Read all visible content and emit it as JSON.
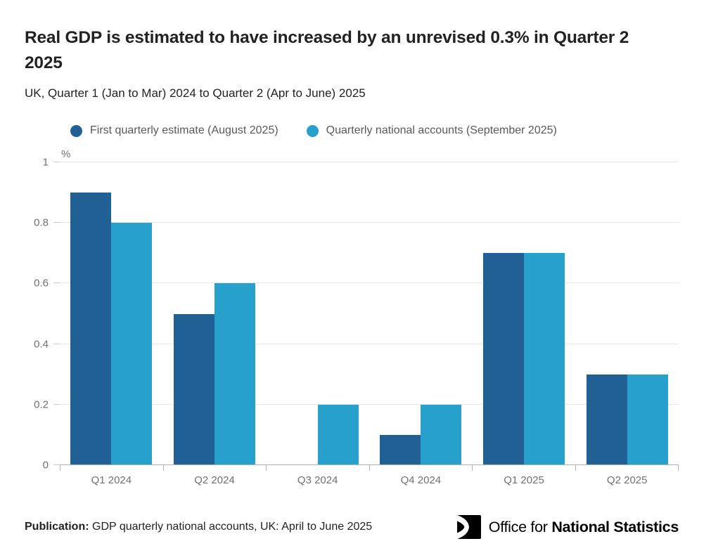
{
  "header": {
    "title": "Real GDP is estimated to have increased by an unrevised 0.3% in Quarter 2 2025",
    "subtitle": "UK, Quarter 1 (Jan to Mar) 2024 to Quarter 2 (Apr to June) 2025"
  },
  "chart_data": {
    "type": "bar",
    "title": "Real GDP is estimated to have increased by an unrevised 0.3% in Quarter 2 2025",
    "subtitle": "UK, Quarter 1 (Jan to Mar) 2024 to Quarter 2 (Apr to June) 2025",
    "unit_label": "%",
    "xlabel": "",
    "ylabel": "%",
    "ylim": [
      0,
      1
    ],
    "grid": "horizontal",
    "legend_position": "top",
    "categories": [
      "Q1 2024",
      "Q2 2024",
      "Q3 2024",
      "Q4 2024",
      "Q1 2025",
      "Q2 2025"
    ],
    "series": [
      {
        "name": "First quarterly estimate (August 2025)",
        "color": "#206095",
        "values": [
          0.9,
          0.5,
          0,
          0.1,
          0.7,
          0.3
        ]
      },
      {
        "name": "Quarterly national accounts (September 2025)",
        "color": "#27a0cc",
        "values": [
          0.8,
          0.6,
          0.2,
          0.2,
          0.7,
          0.3
        ]
      }
    ],
    "yticks": [
      {
        "value": 0,
        "label": "0"
      },
      {
        "value": 0.2,
        "label": "0.2"
      },
      {
        "value": 0.4,
        "label": "0.4"
      },
      {
        "value": 0.6,
        "label": "0.6"
      },
      {
        "value": 0.8,
        "label": "0.8"
      },
      {
        "value": 1,
        "label": "1"
      }
    ]
  },
  "footer": {
    "publication_label": "Publication:",
    "publication_text": " GDP quarterly national accounts, UK: April to June 2025",
    "logo_text_regular": "Office for ",
    "logo_text_bold": "National Statistics"
  },
  "colors": {
    "series_dark_blue": "#206095",
    "series_light_blue": "#27a0cc",
    "gridline": "#e7e7e7",
    "axis_line": "#b3b3b3",
    "axis_text": "#707070",
    "legend_text": "#595959",
    "heading_text": "#222222"
  }
}
